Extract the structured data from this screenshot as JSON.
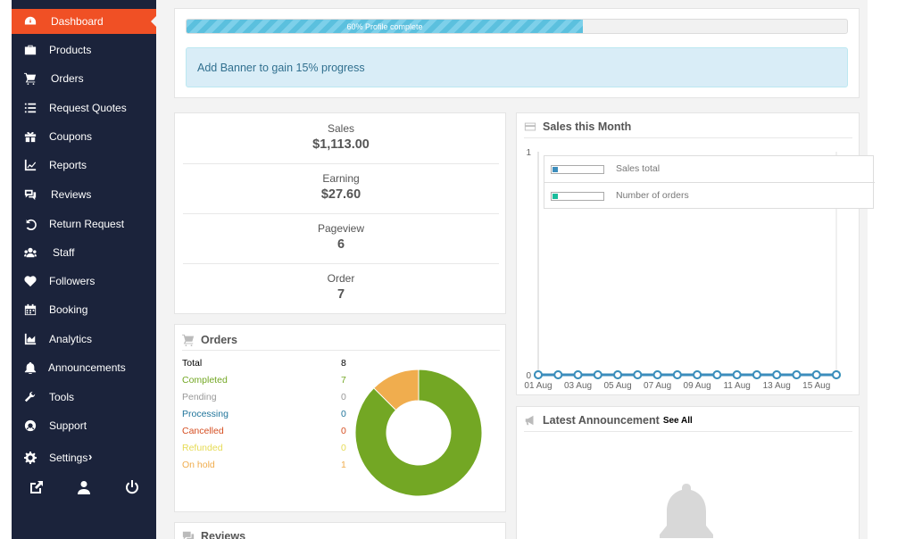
{
  "sidebar": {
    "items": [
      {
        "label": "Dashboard",
        "icon": "dashboard-icon",
        "active": true
      },
      {
        "label": "Products",
        "icon": "briefcase-icon"
      },
      {
        "label": "Orders",
        "icon": "cart-icon"
      },
      {
        "label": "Request Quotes",
        "icon": "list-icon"
      },
      {
        "label": "Coupons",
        "icon": "gift-icon"
      },
      {
        "label": "Reports",
        "icon": "chart-icon"
      },
      {
        "label": "Reviews",
        "icon": "comments-icon"
      },
      {
        "label": "Return Request",
        "icon": "undo-icon"
      },
      {
        "label": "Staff",
        "icon": "users-icon"
      },
      {
        "label": "Followers",
        "icon": "heart-icon"
      },
      {
        "label": "Booking",
        "icon": "calendar-icon"
      },
      {
        "label": "Analytics",
        "icon": "area-chart-icon"
      },
      {
        "label": "Announcements",
        "icon": "bell-icon"
      },
      {
        "label": "Tools",
        "icon": "wrench-icon"
      },
      {
        "label": "Support",
        "icon": "lifebuoy-icon"
      },
      {
        "label": "Settings",
        "icon": "gear-icon",
        "chevron": "›"
      }
    ],
    "bottom_icons": [
      "external-link-icon",
      "user-icon",
      "power-icon"
    ],
    "accent": "#f05025",
    "background": "#1b233b"
  },
  "profile": {
    "progress_label": "60% Profile complete",
    "progress": 0.6,
    "banner_text": "Add Banner to gain 15% progress"
  },
  "stats": [
    {
      "label": "Sales",
      "value": "$1,113.00"
    },
    {
      "label": "Earning",
      "value": "$27.60"
    },
    {
      "label": "Pageview",
      "value": "6"
    },
    {
      "label": "Order",
      "value": "7"
    }
  ],
  "orders": {
    "title": "Orders",
    "rows": [
      {
        "label": "Total",
        "value": "8",
        "color": "#000000"
      },
      {
        "label": "Completed",
        "value": "7",
        "color": "#73a724"
      },
      {
        "label": "Pending",
        "value": "0",
        "color": "#999999"
      },
      {
        "label": "Processing",
        "value": "0",
        "color": "#21759b"
      },
      {
        "label": "Cancelled",
        "value": "0",
        "color": "#d54e21"
      },
      {
        "label": "Refunded",
        "value": "0",
        "color": "#e6db55"
      },
      {
        "label": "On hold",
        "value": "1",
        "color": "#f0ad4e"
      }
    ]
  },
  "reviews": {
    "title": "Reviews"
  },
  "sales_month": {
    "title": "Sales this Month"
  },
  "announcement": {
    "title": "Latest Announcement",
    "see_all": "See All"
  },
  "chart_data": [
    {
      "type": "pie",
      "title": "",
      "categories": [
        "Completed",
        "On hold"
      ],
      "values": [
        7,
        1
      ],
      "colors": [
        "#73a724",
        "#f0ad4e"
      ],
      "donut": true
    },
    {
      "type": "line",
      "title": "",
      "x": [
        "01 Aug",
        "02 Aug",
        "03 Aug",
        "04 Aug",
        "05 Aug",
        "06 Aug",
        "07 Aug",
        "08 Aug",
        "09 Aug",
        "10 Aug",
        "11 Aug",
        "12 Aug",
        "13 Aug",
        "14 Aug",
        "15 Aug",
        "16 Aug"
      ],
      "xtick_labels": [
        "01 Aug",
        "03 Aug",
        "05 Aug",
        "07 Aug",
        "09 Aug",
        "11 Aug",
        "13 Aug",
        "15 Aug"
      ],
      "yticks": [
        "0",
        "1"
      ],
      "ylim": [
        0,
        1
      ],
      "series": [
        {
          "name": "Sales total",
          "values": [
            0,
            0,
            0,
            0,
            0,
            0,
            0,
            0,
            0,
            0,
            0,
            0,
            0,
            0,
            0,
            0
          ],
          "color": "#3c8dbc"
        },
        {
          "name": "Number of orders",
          "values": [
            0,
            0,
            0,
            0,
            0,
            0,
            0,
            0,
            0,
            0,
            0,
            0,
            0,
            0,
            0,
            0
          ],
          "color": "#1abc9c"
        }
      ],
      "legend": "top-left"
    }
  ]
}
